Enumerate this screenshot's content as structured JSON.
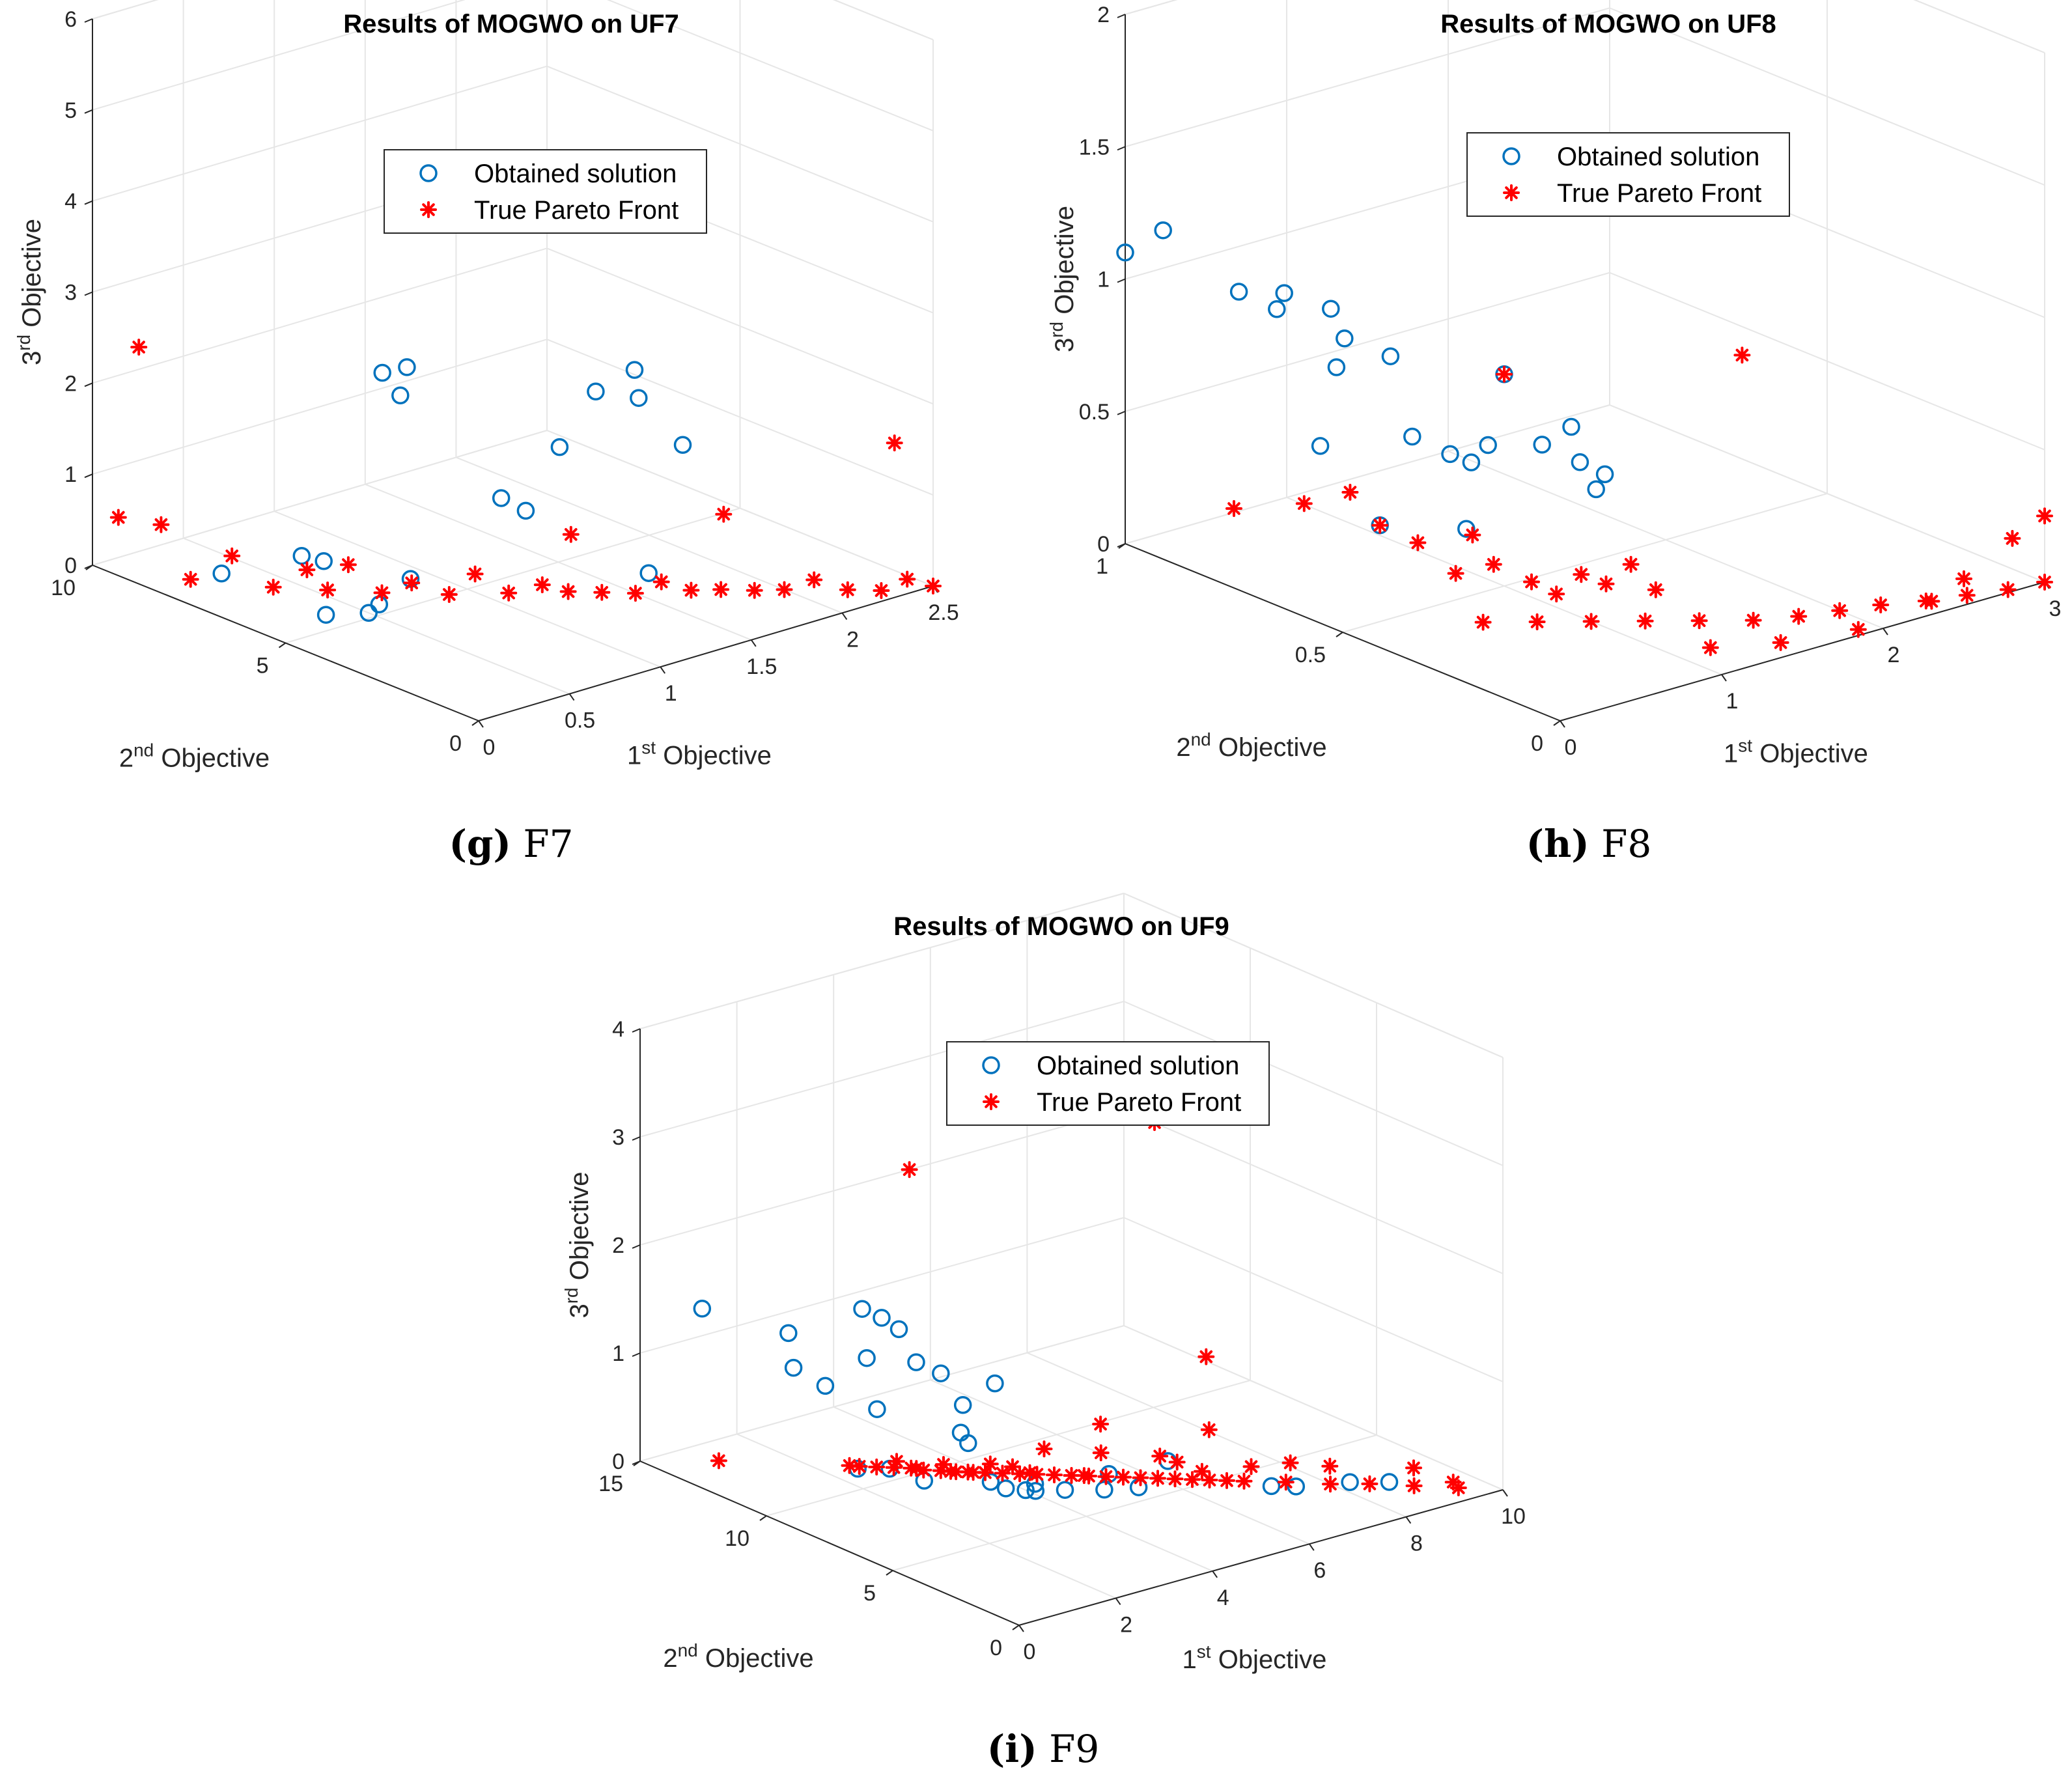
{
  "chart_data": [
    {
      "type": "scatter",
      "title": "Results of MOGWO on UF7",
      "xlabel": "1st Objective",
      "ylabel": "2nd Objective",
      "zlabel": "3rd Objective",
      "xticks": [
        "0",
        "0.5",
        "1",
        "1.5",
        "2",
        "2.5"
      ],
      "yticks": [
        "0",
        "5",
        "10"
      ],
      "zticks": [
        "0",
        "1",
        "2",
        "3",
        "4",
        "5",
        "6"
      ],
      "xlim": [
        0,
        2.5
      ],
      "ylim": [
        0,
        10
      ],
      "zlim": [
        0,
        6
      ],
      "grid": true,
      "legend_position": "top",
      "legend": [
        "Obtained solution",
        "True Pareto Front"
      ],
      "caption_letter": "(g)",
      "caption_text": "F7",
      "series": [
        {
          "name": "Obtained solution",
          "marker": "circle",
          "color": "#0072bd",
          "points": [
            [
              1.6,
              4.5,
              1.9
            ],
            [
              1.75,
              4.2,
              2.1
            ],
            [
              1.9,
              4.8,
              1.6
            ],
            [
              1.55,
              5.2,
              1.2
            ],
            [
              2.1,
              4.6,
              1.0
            ],
            [
              1.3,
              4.9,
              0.7
            ],
            [
              1.25,
              5.3,
              0.8
            ],
            [
              1.0,
              7.2,
              2.0
            ],
            [
              1.05,
              6.8,
              2.1
            ],
            [
              0.95,
              6.5,
              1.9
            ],
            [
              0.55,
              6.6,
              0.3
            ],
            [
              0.45,
              6.7,
              0.4
            ],
            [
              0.2,
              7.6,
              0.2
            ],
            [
              0.9,
              6.0,
              0.0
            ],
            [
              0.6,
              5.4,
              0.0
            ],
            [
              0.5,
              5.2,
              0.0
            ],
            [
              0.35,
              5.6,
              0.0
            ],
            [
              1.7,
              3.6,
              0.0
            ]
          ]
        },
        {
          "name": "True Pareto Front",
          "marker": "star",
          "color": "#ff0000",
          "points": [
            [
              0.1,
              9.8,
              0.5
            ],
            [
              0.25,
              9.4,
              0.4
            ],
            [
              0.0,
              8.8,
              2.6
            ],
            [
              0.2,
              8.4,
              0.0
            ],
            [
              0.3,
              7.8,
              0.3
            ],
            [
              0.4,
              7.2,
              0.0
            ],
            [
              0.5,
              6.8,
              0.2
            ],
            [
              0.55,
              6.5,
              0.0
            ],
            [
              0.6,
              6.2,
              0.3
            ],
            [
              0.7,
              5.8,
              0.0
            ],
            [
              0.8,
              5.5,
              0.1
            ],
            [
              0.9,
              5.0,
              0.0
            ],
            [
              1.0,
              4.8,
              0.2
            ],
            [
              1.1,
              4.4,
              0.0
            ],
            [
              1.2,
              4.0,
              0.1
            ],
            [
              1.3,
              3.8,
              0.0
            ],
            [
              1.4,
              3.4,
              0.0
            ],
            [
              1.5,
              3.0,
              0.0
            ],
            [
              1.6,
              2.8,
              0.1
            ],
            [
              1.7,
              2.5,
              0.0
            ],
            [
              1.8,
              2.2,
              0.0
            ],
            [
              1.9,
              1.8,
              0.0
            ],
            [
              2.0,
              1.5,
              0.0
            ],
            [
              2.1,
              1.2,
              0.1
            ],
            [
              2.2,
              0.8,
              0.0
            ],
            [
              2.3,
              0.4,
              0.0
            ],
            [
              2.4,
              0.2,
              0.1
            ],
            [
              2.5,
              0.0,
              0.0
            ],
            [
              1.4,
              4.2,
              0.5
            ],
            [
              1.9,
              2.6,
              0.7
            ],
            [
              2.5,
              1.0,
              1.4
            ]
          ]
        }
      ]
    },
    {
      "type": "scatter",
      "title": "Results of MOGWO on UF8",
      "xlabel": "1st Objective",
      "ylabel": "2nd Objective",
      "zlabel": "3rd Objective",
      "xticks": [
        "0",
        "1",
        "2",
        "3"
      ],
      "yticks": [
        "0",
        "0.5",
        "1"
      ],
      "zticks": [
        "0",
        "0.5",
        "1",
        "1.5",
        "2"
      ],
      "xlim": [
        0,
        3
      ],
      "ylim": [
        0,
        1
      ],
      "zlim": [
        0,
        2
      ],
      "grid": true,
      "legend_position": "top",
      "legend": [
        "Obtained solution",
        "True Pareto Front"
      ],
      "caption_letter": "(h)",
      "caption_text": "F8",
      "series": [
        {
          "name": "Obtained solution",
          "marker": "circle",
          "color": "#0072bd",
          "points": [
            [
              0.0,
              1.0,
              1.1
            ],
            [
              0.1,
              0.95,
              1.2
            ],
            [
              0.3,
              0.85,
              1.0
            ],
            [
              0.4,
              0.8,
              0.95
            ],
            [
              0.5,
              0.82,
              0.98
            ],
            [
              0.6,
              0.75,
              0.95
            ],
            [
              0.5,
              0.7,
              0.78
            ],
            [
              0.55,
              0.7,
              0.88
            ],
            [
              0.7,
              0.65,
              0.82
            ],
            [
              0.7,
              0.6,
              0.55
            ],
            [
              0.8,
              0.55,
              0.5
            ],
            [
              0.9,
              0.5,
              0.55
            ],
            [
              0.85,
              0.52,
              0.48
            ],
            [
              1.0,
              0.5,
              0.8
            ],
            [
              1.1,
              0.45,
              0.55
            ],
            [
              1.2,
              0.42,
              0.62
            ],
            [
              1.2,
              0.4,
              0.5
            ],
            [
              1.3,
              0.38,
              0.45
            ],
            [
              1.3,
              0.4,
              0.38
            ],
            [
              0.4,
              0.7,
              0.5
            ],
            [
              0.5,
              0.6,
              0.25
            ],
            [
              0.9,
              0.55,
              0.2
            ]
          ]
        },
        {
          "name": "True Pareto Front",
          "marker": "star",
          "color": "#ff0000",
          "points": [
            [
              0.0,
              0.75,
              0.3
            ],
            [
              0.3,
              0.7,
              0.3
            ],
            [
              0.45,
              0.65,
              0.35
            ],
            [
              0.5,
              0.6,
              0.25
            ],
            [
              0.6,
              0.55,
              0.2
            ],
            [
              0.7,
              0.5,
              0.1
            ],
            [
              0.75,
              0.48,
              0.25
            ],
            [
              0.8,
              0.45,
              0.15
            ],
            [
              0.9,
              0.4,
              0.1
            ],
            [
              1.0,
              0.38,
              0.05
            ],
            [
              1.1,
              0.36,
              0.12
            ],
            [
              1.2,
              0.34,
              0.08
            ],
            [
              1.3,
              0.32,
              0.15
            ],
            [
              1.4,
              0.3,
              0.05
            ],
            [
              1.0,
              0.5,
              0.8
            ],
            [
              1.8,
              0.25,
              0.9
            ],
            [
              0.6,
              0.4,
              0.0
            ],
            [
              0.8,
              0.35,
              0.0
            ],
            [
              1.0,
              0.3,
              0.0
            ],
            [
              1.2,
              0.25,
              0.0
            ],
            [
              1.4,
              0.2,
              0.0
            ],
            [
              1.6,
              0.15,
              0.0
            ],
            [
              1.8,
              0.12,
              0.0
            ],
            [
              2.0,
              0.1,
              0.0
            ],
            [
              2.2,
              0.08,
              0.0
            ],
            [
              2.4,
              0.05,
              0.0
            ],
            [
              2.6,
              0.03,
              0.0
            ],
            [
              2.8,
              0.01,
              0.0
            ],
            [
              3.0,
              0.0,
              0.0
            ],
            [
              1.2,
              0.1,
              0.0
            ],
            [
              1.5,
              0.05,
              0.0
            ],
            [
              1.9,
              0.02,
              0.0
            ],
            [
              2.5,
              0.0,
              0.1
            ],
            [
              2.8,
              0.0,
              0.2
            ],
            [
              3.0,
              0.0,
              0.25
            ],
            [
              2.3,
              0.0,
              0.05
            ]
          ]
        }
      ]
    },
    {
      "type": "scatter",
      "title": "Results of MOGWO on UF9",
      "xlabel": "1st Objective",
      "ylabel": "2nd Objective",
      "zlabel": "3rd Objective",
      "xticks": [
        "0",
        "2",
        "4",
        "6",
        "8",
        "10"
      ],
      "yticks": [
        "0",
        "5",
        "10",
        "15"
      ],
      "zticks": [
        "0",
        "1",
        "2",
        "3",
        "4"
      ],
      "xlim": [
        0,
        10
      ],
      "ylim": [
        0,
        15
      ],
      "zlim": [
        0,
        4
      ],
      "grid": true,
      "legend_position": "top",
      "legend": [
        "Obtained solution",
        "True Pareto Front"
      ],
      "caption_letter": "(i)",
      "caption_text": "F9",
      "series": [
        {
          "name": "Obtained solution",
          "marker": "circle",
          "color": "#0072bd",
          "points": [
            [
              0.5,
              13.5,
              1.5
            ],
            [
              1.5,
              12.0,
              1.3
            ],
            [
              1.5,
              11.8,
              1.0
            ],
            [
              2.0,
              11.5,
              0.8
            ],
            [
              2.5,
              11.0,
              1.5
            ],
            [
              2.8,
              10.8,
              1.4
            ],
            [
              3.0,
              10.5,
              1.3
            ],
            [
              2.7,
              11.2,
              1.0
            ],
            [
              3.2,
              10.2,
              1.0
            ],
            [
              3.5,
              9.8,
              0.9
            ],
            [
              2.6,
              10.6,
              0.6
            ],
            [
              3.8,
              9.5,
              0.6
            ],
            [
              4.2,
              9.0,
              0.8
            ],
            [
              3.6,
              9.2,
              0.4
            ],
            [
              3.7,
              9.1,
              0.3
            ],
            [
              2.2,
              10.6,
              0.1
            ],
            [
              2.6,
              10.1,
              0.1
            ],
            [
              3.0,
              9.5,
              0.0
            ],
            [
              3.8,
              8.4,
              0.0
            ],
            [
              4.3,
              7.6,
              0.0
            ],
            [
              5.2,
              6.4,
              0.1
            ],
            [
              6.0,
              5.6,
              0.2
            ],
            [
              5.5,
              5.8,
              0.0
            ],
            [
              7.2,
              3.8,
              0.0
            ],
            [
              7.5,
              3.4,
              0.0
            ],
            [
              8.3,
              2.8,
              0.0
            ],
            [
              8.8,
              2.2,
              0.0
            ],
            [
              3.8,
              7.8,
              0.0
            ],
            [
              4.0,
              7.4,
              0.0
            ],
            [
              4.1,
              7.2,
              0.0
            ],
            [
              4.5,
              6.8,
              0.0
            ],
            [
              5.0,
              6.2,
              0.0
            ]
          ]
        },
        {
          "name": "True Pareto Front",
          "marker": "star",
          "color": "#ff0000",
          "points": [
            [
              1.0,
              13.8,
              0.0
            ],
            [
              2.5,
              11.5,
              0.0
            ],
            [
              2.6,
              11.3,
              0.0
            ],
            [
              2.8,
              11.0,
              0.0
            ],
            [
              3.0,
              10.7,
              0.0
            ],
            [
              3.2,
              10.4,
              0.0
            ],
            [
              3.3,
              10.1,
              0.0
            ],
            [
              3.5,
              9.8,
              0.0
            ],
            [
              3.6,
              9.6,
              0.0
            ],
            [
              3.8,
              9.3,
              0.0
            ],
            [
              4.0,
              9.0,
              0.0
            ],
            [
              4.2,
              8.7,
              0.0
            ],
            [
              4.4,
              8.4,
              0.0
            ],
            [
              4.6,
              8.1,
              0.0
            ],
            [
              4.8,
              7.8,
              0.0
            ],
            [
              5.0,
              7.5,
              0.0
            ],
            [
              5.2,
              7.2,
              0.0
            ],
            [
              5.4,
              6.9,
              0.0
            ],
            [
              5.6,
              6.6,
              0.0
            ],
            [
              5.8,
              6.3,
              0.0
            ],
            [
              6.0,
              6.0,
              0.0
            ],
            [
              6.2,
              5.7,
              0.0
            ],
            [
              6.4,
              5.4,
              0.0
            ],
            [
              6.6,
              5.1,
              0.0
            ],
            [
              6.8,
              4.8,
              0.0
            ],
            [
              7.0,
              4.5,
              0.0
            ],
            [
              7.5,
              3.8,
              0.0
            ],
            [
              8.0,
              3.0,
              0.0
            ],
            [
              8.5,
              2.4,
              0.0
            ],
            [
              9.0,
              1.6,
              0.0
            ],
            [
              9.5,
              0.8,
              0.0
            ],
            [
              4.0,
              12.0,
              2.5
            ],
            [
              7.5,
              9.0,
              2.8
            ],
            [
              7.0,
              6.0,
              1.0
            ],
            [
              6.8,
              5.5,
              0.4
            ],
            [
              5.6,
              7.5,
              0.4
            ],
            [
              5.4,
              7.1,
              0.2
            ],
            [
              4.8,
              8.2,
              0.2
            ],
            [
              4.0,
              8.8,
              0.1
            ],
            [
              3.4,
              9.5,
              0.1
            ],
            [
              6.2,
              6.3,
              0.15
            ],
            [
              6.4,
              6.0,
              0.1
            ],
            [
              7.8,
              4.2,
              0.1
            ],
            [
              8.2,
              3.4,
              0.1
            ],
            [
              9.2,
              2.0,
              0.1
            ],
            [
              9.6,
              1.2,
              0.0
            ],
            [
              3.1,
              10.0,
              0.05
            ],
            [
              3.5,
              9.2,
              0.05
            ],
            [
              4.4,
              8.0,
              0.05
            ],
            [
              5.0,
              7.0,
              0.05
            ],
            [
              2.9,
              10.4,
              0.1
            ],
            [
              3.7,
              8.9,
              0.05
            ],
            [
              4.2,
              8.3,
              0.1
            ],
            [
              6.6,
              5.4,
              0.05
            ],
            [
              7.2,
              4.6,
              0.1
            ]
          ]
        }
      ]
    }
  ]
}
